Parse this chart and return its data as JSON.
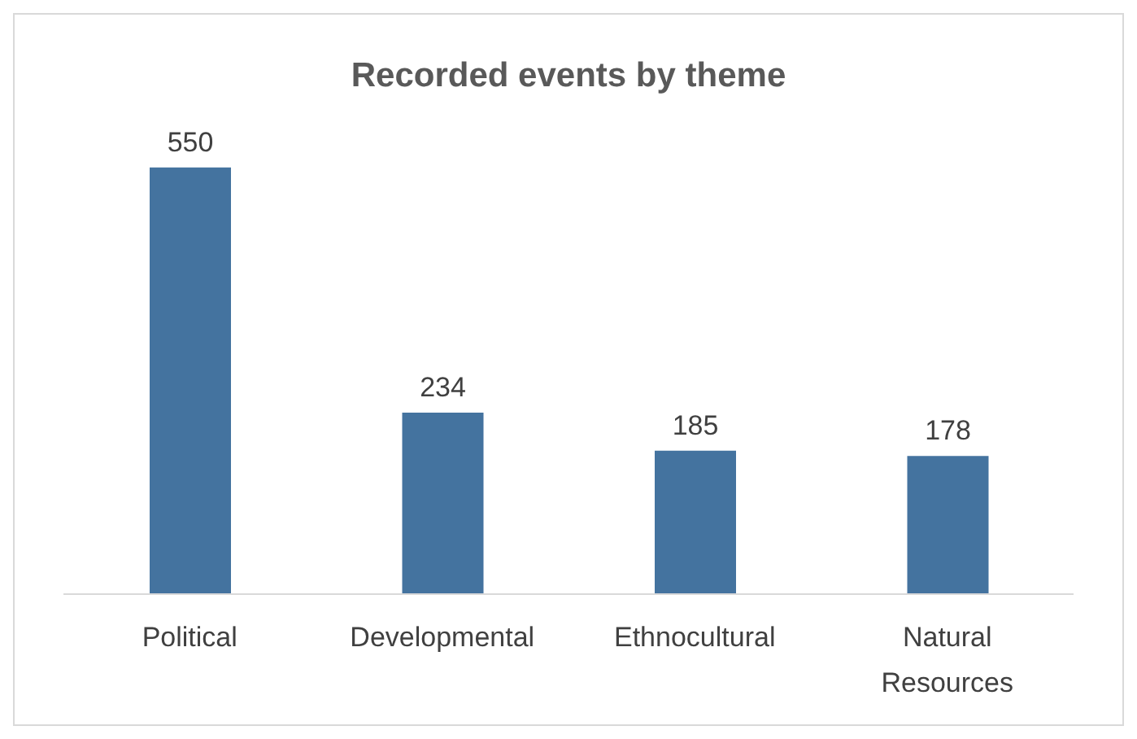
{
  "chart_data": {
    "type": "bar",
    "title": "Recorded events by theme",
    "categories": [
      "Political",
      "Developmental",
      "Ethnocultural",
      "Natural Resources"
    ],
    "values": [
      550,
      234,
      185,
      178
    ],
    "color": "#44739f",
    "data_labels": true,
    "grid": false
  }
}
